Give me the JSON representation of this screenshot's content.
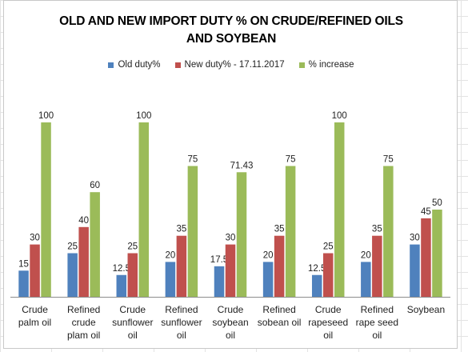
{
  "chart_data": {
    "type": "bar",
    "title_line1": "OLD AND NEW  IMPORT DUTY % ON CRUDE/REFINED OILS",
    "title_line2": "AND SOYBEAN",
    "categories": [
      [
        "Crude",
        "palm oil"
      ],
      [
        "Refined",
        "crude",
        "plam oil"
      ],
      [
        "Crude",
        "sunflower",
        "oil"
      ],
      [
        "Refined",
        "sunflower",
        "oil"
      ],
      [
        "Crude",
        "soybean",
        "oil"
      ],
      [
        "Refined",
        "sobean oil"
      ],
      [
        "Crude",
        "rapeseed",
        "oil"
      ],
      [
        "Refined",
        "rape seed",
        "oil"
      ],
      [
        "Soybean"
      ]
    ],
    "series": [
      {
        "name": "Old duty%",
        "color": "#4f81bd",
        "values": [
          15,
          25,
          12.5,
          20,
          17.5,
          20,
          12.5,
          20,
          30
        ],
        "labels": [
          "15",
          "25",
          "12.5",
          "20",
          "17.5",
          "20",
          "12.5",
          "20",
          "30"
        ]
      },
      {
        "name": "New duty% - 17.11.2017",
        "color": "#c0504d",
        "values": [
          30,
          40,
          25,
          35,
          30,
          35,
          25,
          35,
          45
        ],
        "labels": [
          "30",
          "40",
          "25",
          "35",
          "30",
          "35",
          "25",
          "35",
          "45"
        ]
      },
      {
        "name": "%  increase",
        "color": "#9bbb59",
        "values": [
          100,
          60,
          100,
          75,
          71.43,
          75,
          100,
          75,
          50
        ],
        "labels": [
          "100",
          "60",
          "100",
          "75",
          "71.43",
          "75",
          "100",
          "75",
          "50"
        ]
      }
    ],
    "ylim": [
      0,
      105
    ],
    "grid": false,
    "legend_position": "top",
    "data_labels": true
  }
}
